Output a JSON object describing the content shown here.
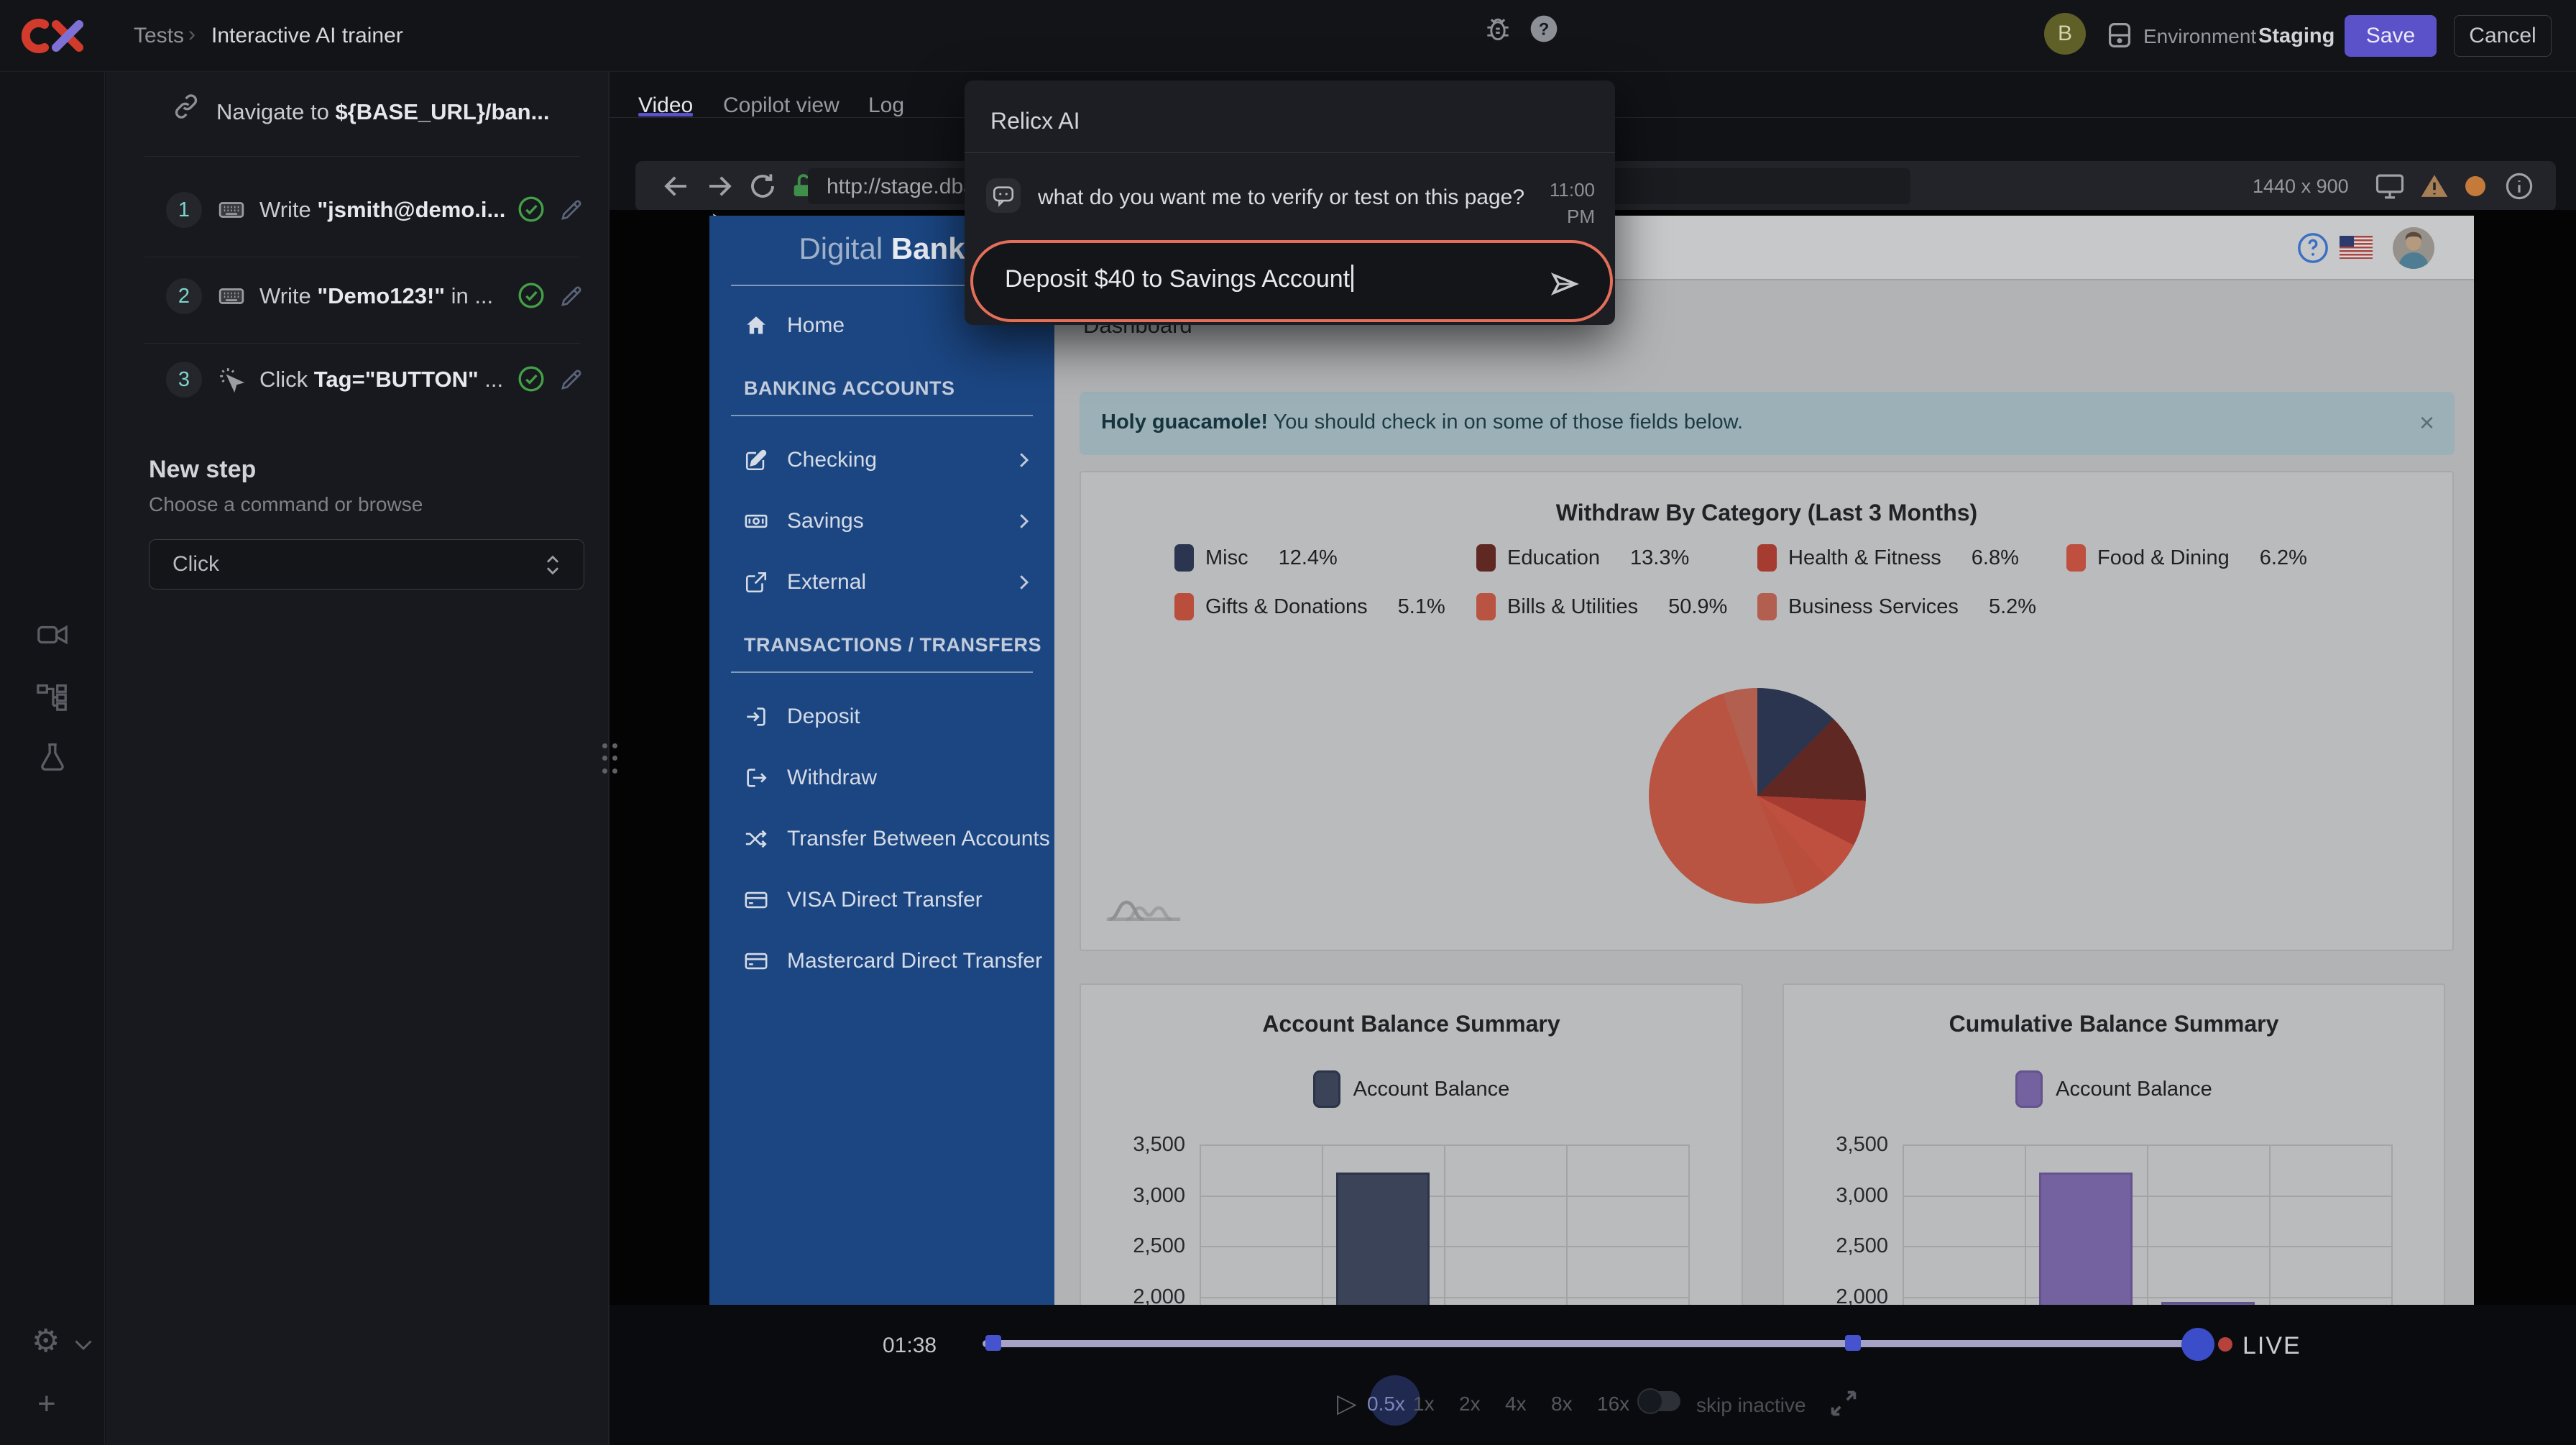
{
  "app": {
    "breadcrumb": [
      "Tests",
      "Interactive AI trainer"
    ],
    "breadcrumb_sep": "›",
    "environment_label": "Environment",
    "environment_value": "Staging",
    "save_label": "Save",
    "cancel_label": "Cancel",
    "avatar_initial": "B",
    "accent_color": "#5b51c9"
  },
  "tabs": [
    {
      "label": "Video",
      "active": true
    },
    {
      "label": "Copilot view",
      "active": false
    },
    {
      "label": "Log",
      "active": false
    }
  ],
  "browser": {
    "url": "http://stage.dba",
    "resolution": "1440 x 900"
  },
  "steps_panel": {
    "navigate_prefix": "Navigate to ",
    "navigate_target": "${BASE_URL}/ban...",
    "steps": [
      {
        "num": "1",
        "icon": "keyboard-icon",
        "prefix": "Write ",
        "em": "\"jsmith@demo.i...",
        "suffix": ""
      },
      {
        "num": "2",
        "icon": "keyboard-icon",
        "prefix": "Write ",
        "em": "\"Demo123!\"",
        "suffix": " in ..."
      },
      {
        "num": "3",
        "icon": "cursor-click-icon",
        "prefix": "Click ",
        "em": "Tag=\"BUTTON\"",
        "suffix": " ..."
      }
    ],
    "new_step_title": "New step",
    "new_step_subtitle": "Choose a command or browse",
    "new_step_select_value": "Click"
  },
  "dialog": {
    "title": "Relicx AI",
    "message": "what do you want me to verify or test on this page?",
    "time": "11:00",
    "meridiem": "PM",
    "input_value": "Deposit $40 to Savings Account",
    "accent_color": "#e56e5a"
  },
  "bank": {
    "logo_light": "Digital ",
    "logo_bold": "Bank",
    "page_title": "Dashboard",
    "alert_lead": "Holy guacamole!",
    "alert_rest": " You should check in on some of those fields below.",
    "alert_close": "×",
    "sections": [
      {
        "title": "",
        "items": [
          {
            "label": "Home",
            "icon": "home-icon",
            "chevron": false
          }
        ]
      },
      {
        "title": "BANKING ACCOUNTS",
        "items": [
          {
            "label": "Checking",
            "icon": "pencil-square-icon",
            "chevron": true
          },
          {
            "label": "Savings",
            "icon": "money-bill-icon",
            "chevron": true
          },
          {
            "label": "External",
            "icon": "external-link-icon",
            "chevron": true
          }
        ]
      },
      {
        "title": "TRANSACTIONS / TRANSFERS",
        "items": [
          {
            "label": "Deposit",
            "icon": "sign-in-icon",
            "chevron": false
          },
          {
            "label": "Withdraw",
            "icon": "sign-out-icon",
            "chevron": false
          },
          {
            "label": "Transfer Between Accounts",
            "icon": "shuffle-icon",
            "chevron": false
          },
          {
            "label": "VISA Direct Transfer",
            "icon": "credit-card-icon",
            "chevron": false
          },
          {
            "label": "Mastercard Direct Transfer",
            "icon": "credit-card-icon",
            "chevron": false
          }
        ]
      }
    ]
  },
  "chart_data": [
    {
      "type": "pie",
      "title": "Withdraw By Category (Last 3 Months)",
      "slices": [
        {
          "label": "Misc",
          "value": 12.4,
          "pct_label": "12.4%",
          "color": "#2b3550"
        },
        {
          "label": "Education",
          "value": 13.3,
          "pct_label": "13.3%",
          "color": "#5f2823"
        },
        {
          "label": "Health & Fitness",
          "value": 6.8,
          "pct_label": "6.8%",
          "color": "#a63c31"
        },
        {
          "label": "Food & Dining",
          "value": 6.2,
          "pct_label": "6.2%",
          "color": "#bf4f3e"
        },
        {
          "label": "Gifts & Donations",
          "value": 5.1,
          "pct_label": "5.1%",
          "color": "#ba4e3d"
        },
        {
          "label": "Bills & Utilities",
          "value": 50.9,
          "pct_label": "50.9%",
          "color": "#b85441"
        },
        {
          "label": "Business Services",
          "value": 5.2,
          "pct_label": "5.2%",
          "color": "#b35f50"
        }
      ],
      "legend_rows": [
        [
          0,
          1,
          2,
          3
        ],
        [
          4,
          5,
          6
        ]
      ],
      "legend_position": "top"
    },
    {
      "type": "bar",
      "title": "Account Balance Summary",
      "legend": "Account Balance",
      "color": "#3a4357",
      "border_color": "#2c3547",
      "y_tick_labels": [
        "3,500",
        "3,000",
        "2,500",
        "2,000"
      ],
      "y_max": 3500,
      "y_step": 500,
      "y_visible_min": 2000,
      "columns": 4,
      "bars": [
        {
          "column": 2,
          "value": 3220
        }
      ]
    },
    {
      "type": "bar",
      "title": "Cumulative Balance Summary",
      "legend": "Account Balance",
      "color": "#74619f",
      "border_color": "#65538e",
      "y_tick_labels": [
        "3,500",
        "3,000",
        "2,500",
        "2,000"
      ],
      "y_max": 3500,
      "y_step": 500,
      "y_visible_min": 2000,
      "columns": 4,
      "bars": [
        {
          "column": 2,
          "value": 3220
        },
        {
          "column": 3,
          "value": 1950
        }
      ]
    }
  ],
  "player": {
    "current_time": "01:38",
    "live_label": "LIVE",
    "speeds": [
      "0.5x",
      "1x",
      "2x",
      "4x",
      "8x",
      "16x"
    ],
    "active_speed": "0.5x",
    "skip_label": "skip inactive"
  }
}
